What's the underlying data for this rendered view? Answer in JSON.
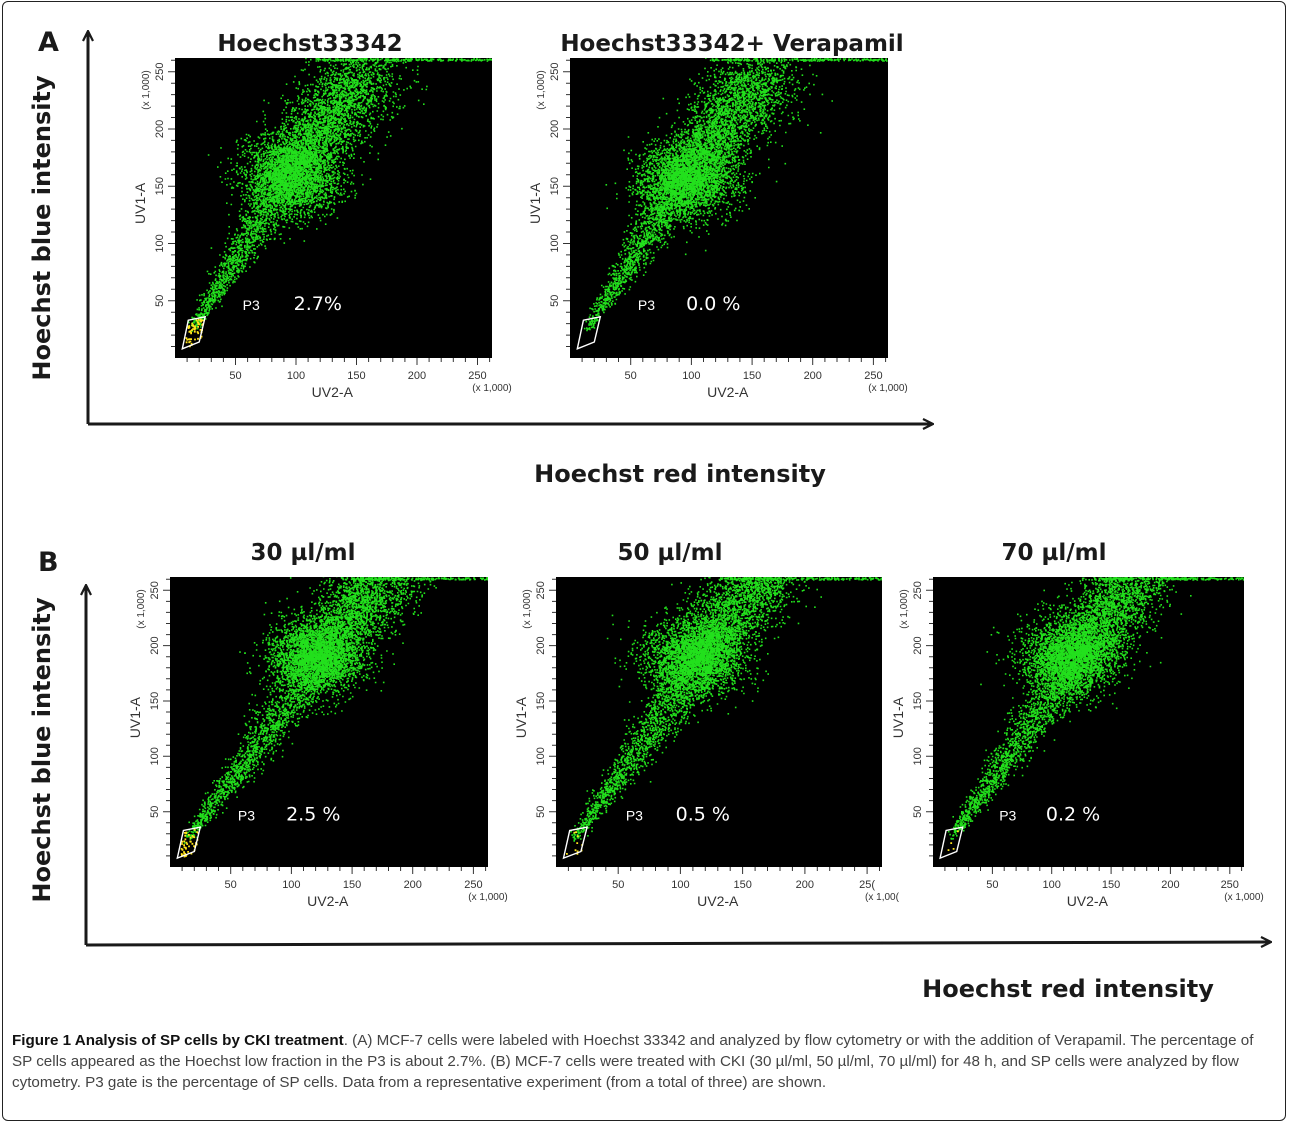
{
  "panel_a_letter": "A",
  "panel_b_letter": "B",
  "big_axes": {
    "y_label": "Hoechst blue intensity",
    "x_label": "Hoechst red intensity"
  },
  "caption": {
    "title": "Figure 1 Analysis of SP cells by CKI treatment",
    "text": ". (A) MCF-7 cells were labeled with Hoechst 33342 and analyzed by flow cytometry or with the addition of Verapamil. The percentage of SP cells appeared as the Hoechst low fraction in the P3 is about 2.7%. (B) MCF-7 cells were treated with CKI (30 µl/ml, 50 µl/ml, 70 µl/ml) for 48 h, and SP cells were analyzed by flow cytometry. P3 gate is the percentage of SP cells. Data from a representative experiment (from a total of three) are shown."
  },
  "colors": {
    "plot_background": "#000000",
    "events": "#22e01c",
    "gated_events": "#ffe41a",
    "gate_outline": "#ffffff"
  },
  "chart_data": [
    {
      "type": "scatter",
      "panel": "A",
      "title": "Hoechst33342",
      "xlabel": "UV2-A",
      "ylabel": "UV1-A",
      "x_multiplier": "(x 1,000)",
      "y_multiplier": "(x 1,000)",
      "xlim": [
        0,
        262
      ],
      "ylim": [
        0,
        262
      ],
      "x_ticks": [
        "50",
        "100",
        "150",
        "200",
        "250"
      ],
      "y_ticks": [
        "50",
        "100",
        "150",
        "200",
        "250"
      ],
      "gate": {
        "name": "P3",
        "percent": "2.7%",
        "polygon": [
          [
            6,
            8
          ],
          [
            20,
            14
          ],
          [
            25,
            36
          ],
          [
            11,
            33
          ]
        ]
      },
      "population": {
        "main_cluster_center": [
          95,
          160
        ],
        "gated_fraction": 0.027
      }
    },
    {
      "type": "scatter",
      "panel": "A",
      "title": "Hoechst33342+ Verapamil",
      "xlabel": "UV2-A",
      "ylabel": "UV1-A",
      "x_multiplier": "(x 1,000)",
      "y_multiplier": "(x 1,000)",
      "xlim": [
        0,
        262
      ],
      "ylim": [
        0,
        262
      ],
      "x_ticks": [
        "50",
        "100",
        "150",
        "200",
        "250"
      ],
      "y_ticks": [
        "50",
        "100",
        "150",
        "200",
        "250"
      ],
      "gate": {
        "name": "P3",
        "percent": "0.0 %",
        "polygon": [
          [
            6,
            8
          ],
          [
            20,
            14
          ],
          [
            25,
            36
          ],
          [
            11,
            33
          ]
        ]
      },
      "population": {
        "main_cluster_center": [
          95,
          155
        ],
        "gated_fraction": 0.0
      }
    },
    {
      "type": "scatter",
      "panel": "B",
      "title": "30 µl/ml",
      "xlabel": "UV2-A",
      "ylabel": "UV1-A",
      "x_multiplier": "(x 1,000)",
      "y_multiplier": "(x 1,000)",
      "xlim": [
        0,
        262
      ],
      "ylim": [
        0,
        262
      ],
      "x_ticks": [
        "50",
        "100",
        "150",
        "200",
        "250"
      ],
      "y_ticks": [
        "50",
        "100",
        "150",
        "200",
        "250"
      ],
      "gate": {
        "name": "P3",
        "percent": "2.5 %",
        "polygon": [
          [
            6,
            8
          ],
          [
            20,
            14
          ],
          [
            25,
            36
          ],
          [
            11,
            33
          ]
        ]
      },
      "population": {
        "main_cluster_center": [
          120,
          190
        ],
        "gated_fraction": 0.025
      }
    },
    {
      "type": "scatter",
      "panel": "B",
      "title": "50 µl/ml",
      "xlabel": "UV2-A",
      "ylabel": "UV1-A",
      "x_multiplier": "(x 1,00(",
      "y_multiplier": "(x 1,000)",
      "xlim": [
        0,
        262
      ],
      "ylim": [
        0,
        262
      ],
      "x_ticks": [
        "50",
        "100",
        "150",
        "200",
        "25("
      ],
      "y_ticks": [
        "50",
        "100",
        "150",
        "200",
        "250"
      ],
      "gate": {
        "name": "P3",
        "percent": "0.5 %",
        "polygon": [
          [
            6,
            8
          ],
          [
            20,
            14
          ],
          [
            25,
            36
          ],
          [
            11,
            33
          ]
        ]
      },
      "population": {
        "main_cluster_center": [
          110,
          190
        ],
        "gated_fraction": 0.005
      }
    },
    {
      "type": "scatter",
      "panel": "B",
      "title": "70 µl/ml",
      "xlabel": "UV2-A",
      "ylabel": "UV1-A",
      "x_multiplier": "(x 1,000)",
      "y_multiplier": "(x 1,000)",
      "xlim": [
        0,
        262
      ],
      "ylim": [
        0,
        262
      ],
      "x_ticks": [
        "50",
        "100",
        "150",
        "200",
        "250"
      ],
      "y_ticks": [
        "50",
        "100",
        "150",
        "200",
        "250"
      ],
      "gate": {
        "name": "P3",
        "percent": "0.2 %",
        "polygon": [
          [
            6,
            8
          ],
          [
            20,
            14
          ],
          [
            25,
            36
          ],
          [
            11,
            33
          ]
        ]
      },
      "population": {
        "main_cluster_center": [
          115,
          190
        ],
        "gated_fraction": 0.002
      }
    }
  ]
}
